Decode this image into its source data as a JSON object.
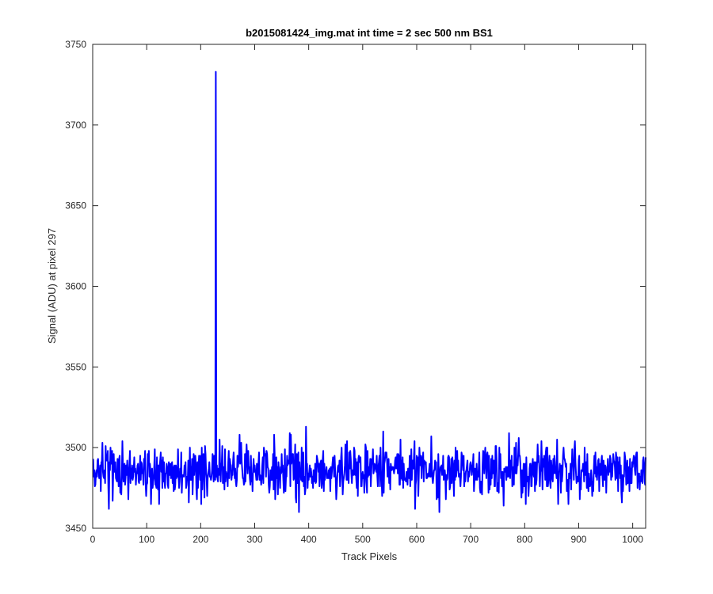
{
  "chart_data": {
    "type": "line",
    "title": "b2015081424_img.mat int time = 2 sec  500 nm BS1",
    "xlabel": "Track Pixels",
    "ylabel": "Signal (ADU) at pixel 297",
    "xlim": [
      0,
      1024
    ],
    "ylim": [
      3450,
      3750
    ],
    "xticks": [
      0,
      100,
      200,
      300,
      400,
      500,
      600,
      700,
      800,
      900,
      1000
    ],
    "yticks": [
      3450,
      3500,
      3550,
      3600,
      3650,
      3700,
      3750
    ],
    "grid": false,
    "legend": "none",
    "series": [
      {
        "color": "#0000ff",
        "noise": {
          "x_start": 1,
          "x_end": 1024,
          "mean": 3486,
          "std": 8.5,
          "min": 3460,
          "max": 3515
        },
        "spike": {
          "x": 228,
          "peak": 3733
        },
        "labels": {
          "x": "Track Pixel",
          "y": "Signal (ADU)"
        }
      }
    ]
  },
  "colors": {
    "line": "#0000ff",
    "axes": "#262626",
    "background": "#ffffff"
  }
}
